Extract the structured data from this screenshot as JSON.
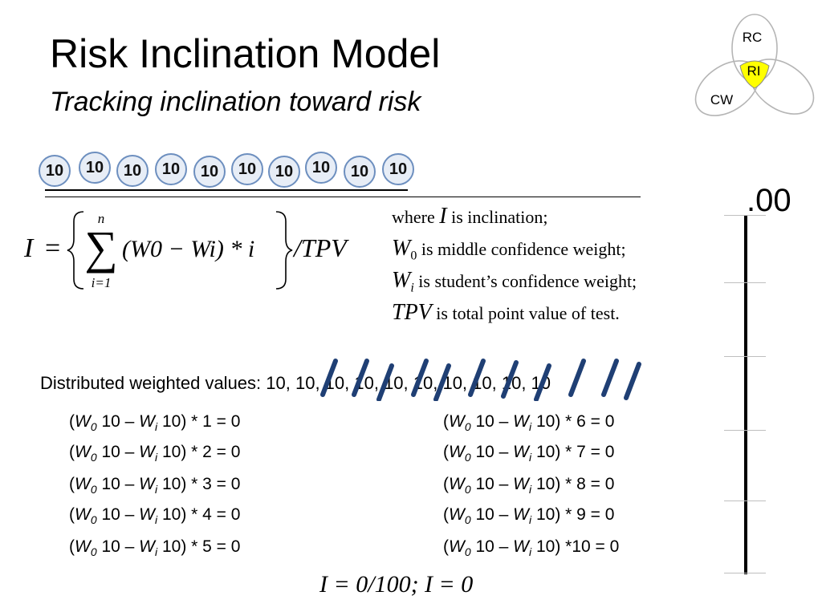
{
  "slide": {
    "title": "Risk Inclination Model",
    "subtitle": "Tracking inclination toward risk"
  },
  "logo": {
    "labels": [
      "RC",
      "RI",
      "CW"
    ],
    "highlight_color": "#ffff00"
  },
  "circles": [
    "10",
    "10",
    "10",
    "10",
    "10",
    "10",
    "10",
    "10",
    "10",
    "10"
  ],
  "formula": {
    "lhs": "I",
    "sum_upper": "n",
    "sum_lower": "i=1",
    "term": "(W0 − Wi) * i",
    "divisor": "/TPV"
  },
  "definitions": [
    {
      "prefix": "where",
      "symbol": "I",
      "text": "is inclination;"
    },
    {
      "symbol": "W",
      "sub": "0",
      "text": "is middle confidence weight;"
    },
    {
      "symbol": "W",
      "sub": "i",
      "text": "is student’s confidence weight;"
    },
    {
      "symbol": "TPV",
      "text": "is total point value of test."
    }
  ],
  "distributed": {
    "label": "Distributed weighted values:",
    "values": "10, 10, 10, 10, 10, 10, 10, 10, 10, 10"
  },
  "equations": [
    {
      "mult": " 1 = 0"
    },
    {
      "mult": " 2 = 0"
    },
    {
      "mult": " 3 = 0"
    },
    {
      "mult": " 4 = 0"
    },
    {
      "mult": " 5 = 0"
    },
    {
      "mult": " 6 = 0"
    },
    {
      "mult": " 7 = 0"
    },
    {
      "mult": " 8 = 0"
    },
    {
      "mult": " 9 = 0"
    },
    {
      "mult": "10 = 0"
    }
  ],
  "equation_parts": {
    "open": "(",
    "w": "W",
    "sub0": "0",
    "mid": " 10 – ",
    "subi": "i",
    "close": " 10) *"
  },
  "result": "I = 0/100;  I = 0",
  "scale": {
    "value_label": ".00"
  }
}
